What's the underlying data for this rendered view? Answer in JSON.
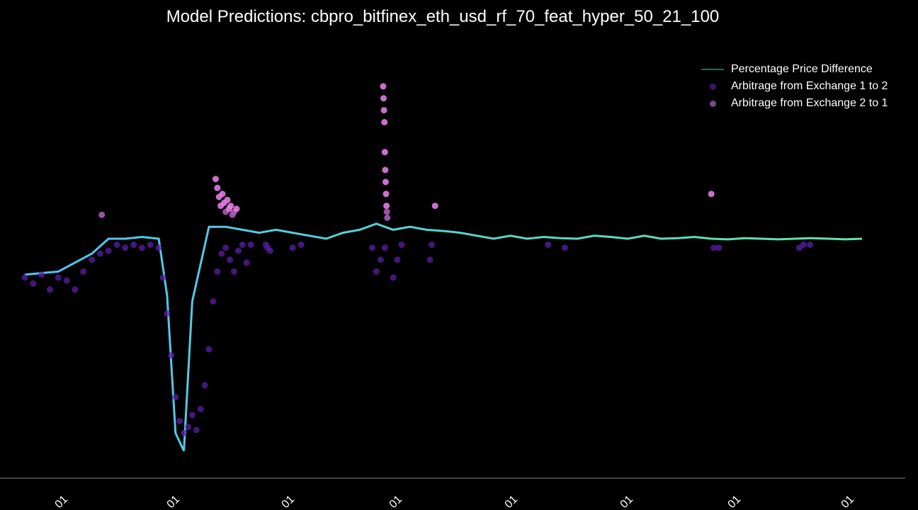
{
  "chart_data": {
    "type": "line",
    "title": "Model Predictions: cbpro_bitfinex_eth_usd_rf_70_feat_hyper_50_21_100",
    "xlabel": "",
    "ylabel": "",
    "x_tick_labels": [
      "01",
      "01",
      "01",
      "01",
      "01",
      "01",
      "01",
      "01"
    ],
    "grid": false,
    "legend_position": "top-right",
    "series": [
      {
        "name": "Percentage Price Difference",
        "kind": "line",
        "color_start": "#4fc3f7",
        "color_end": "#5ee6a8",
        "x": [
          0,
          4,
          8,
          10,
          12,
          14,
          16,
          17,
          18,
          19,
          20,
          22,
          24,
          26,
          28,
          30,
          32,
          34,
          36,
          38,
          40,
          42,
          44,
          46,
          48,
          50,
          52,
          54,
          56,
          58,
          60,
          62,
          64,
          66,
          68,
          70,
          72,
          74,
          76,
          78,
          80,
          82,
          84,
          86,
          88,
          90,
          92,
          94,
          96,
          98,
          100
        ],
        "y": [
          -0.55,
          -0.5,
          -0.2,
          0.05,
          0.05,
          0.08,
          0.05,
          -0.9,
          -3.2,
          -3.5,
          -1.0,
          0.25,
          0.25,
          0.2,
          0.15,
          0.2,
          0.15,
          0.1,
          0.05,
          0.15,
          0.2,
          0.3,
          0.2,
          0.25,
          0.2,
          0.18,
          0.15,
          0.1,
          0.05,
          0.1,
          0.05,
          0.08,
          0.06,
          0.05,
          0.1,
          0.08,
          0.05,
          0.1,
          0.05,
          0.06,
          0.08,
          0.05,
          0.04,
          0.06,
          0.05,
          0.04,
          0.05,
          0.06,
          0.05,
          0.04,
          0.05
        ]
      },
      {
        "name": "Arbitrage from Exchange 1 to 2",
        "kind": "scatter",
        "color": "#5b1fa6",
        "x": [
          0,
          1,
          2,
          3,
          4,
          5,
          6,
          7,
          8,
          9,
          10,
          11,
          12,
          13,
          14,
          15,
          16,
          16.5,
          17,
          17.5,
          18,
          18.5,
          19,
          19.5,
          20,
          20.5,
          21,
          21.5,
          22,
          22.5,
          23,
          23.5,
          24,
          24.5,
          25,
          25.5,
          26,
          26.5,
          27,
          28.8,
          29,
          29.3,
          32,
          33,
          41.5,
          42,
          42.5,
          43,
          44,
          44.5,
          45,
          48.4,
          48.6,
          62.5,
          64.5,
          82.3,
          82.9,
          92.5,
          93,
          93.8
        ],
        "y": [
          -0.6,
          -0.7,
          -0.55,
          -0.8,
          -0.6,
          -0.65,
          -0.8,
          -0.5,
          -0.3,
          -0.2,
          -0.15,
          -0.05,
          -0.1,
          -0.05,
          -0.1,
          -0.05,
          -0.1,
          -0.6,
          -1.2,
          -1.9,
          -2.6,
          -3.0,
          -3.2,
          -3.1,
          -2.9,
          -3.15,
          -2.8,
          -2.4,
          -1.8,
          -1.0,
          -0.5,
          -0.2,
          -0.1,
          -0.3,
          -0.5,
          -0.15,
          -0.05,
          -0.35,
          -0.05,
          -0.05,
          -0.1,
          -0.15,
          -0.1,
          -0.05,
          -0.1,
          -0.5,
          -0.3,
          -0.1,
          -0.6,
          -0.3,
          -0.05,
          -0.3,
          -0.05,
          -0.05,
          -0.1,
          -0.1,
          -0.1,
          -0.1,
          -0.05,
          -0.05
        ]
      },
      {
        "name": "Arbitrage from Exchange 2 to 1",
        "kind": "scatter",
        "color": "#b060c0",
        "highlight_color": "#ee82ee",
        "x": [
          9.2,
          22.8,
          23.0,
          23.2,
          23.4,
          23.6,
          23.8,
          24.0,
          24.2,
          24.4,
          24.6,
          24.8,
          25.0,
          25.3,
          42.8,
          42.85,
          42.9,
          42.95,
          43.0,
          43.05,
          43.1,
          43.15,
          43.2,
          43.25,
          43.3,
          49.0,
          82.0
        ],
        "y": [
          0.45,
          1.05,
          0.9,
          0.75,
          0.6,
          0.8,
          0.65,
          0.5,
          0.7,
          0.55,
          0.6,
          0.45,
          0.5,
          0.55,
          2.6,
          2.4,
          2.2,
          2.0,
          1.5,
          1.2,
          1.0,
          0.8,
          0.6,
          0.5,
          0.4,
          0.6,
          0.8
        ]
      }
    ],
    "xlim": [
      0,
      100
    ],
    "ylim": [
      -3.6,
      2.8
    ]
  }
}
